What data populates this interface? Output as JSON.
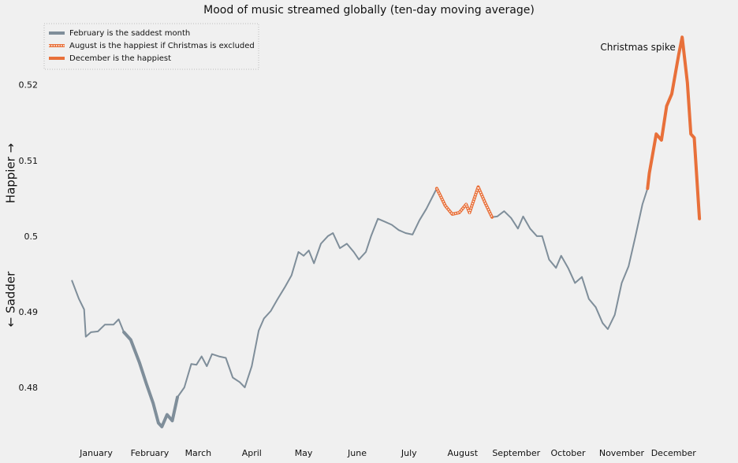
{
  "chart_data": {
    "type": "line",
    "title": "Mood of music streamed globally (ten-day moving average)",
    "y_label_low": "← Sadder",
    "y_label_high": "Happier →",
    "annotation": "Christmas spike",
    "annotation_at": [
      352,
      0.525
    ],
    "xlim": [
      -11,
      379
    ],
    "ylim": [
      0.4725,
      0.5284
    ],
    "xticks": [
      {
        "value": 15,
        "label": "January"
      },
      {
        "value": 46,
        "label": "February"
      },
      {
        "value": 74,
        "label": "March"
      },
      {
        "value": 105,
        "label": "April"
      },
      {
        "value": 135,
        "label": "May"
      },
      {
        "value": 166,
        "label": "June"
      },
      {
        "value": 196,
        "label": "July"
      },
      {
        "value": 227,
        "label": "August"
      },
      {
        "value": 258,
        "label": "September"
      },
      {
        "value": 288,
        "label": "October"
      },
      {
        "value": 319,
        "label": "November"
      },
      {
        "value": 349,
        "label": "December"
      }
    ],
    "yticks": [
      0.48,
      0.49,
      0.5,
      0.51,
      0.52
    ],
    "grid": false,
    "legend": "upper left",
    "series": [
      {
        "color": "#7f8e9a",
        "width": 2,
        "x": [
          1,
          5,
          8,
          9,
          12,
          16,
          20,
          25,
          28,
          31,
          35,
          40,
          44,
          48,
          51,
          53,
          56,
          59,
          62,
          66,
          70,
          73,
          76,
          79,
          82,
          86,
          90,
          94,
          98,
          101,
          105,
          109,
          112,
          116,
          120,
          124,
          128,
          132,
          135,
          138,
          141,
          145,
          149,
          152,
          156,
          160,
          164,
          167,
          171,
          174,
          178,
          182,
          186,
          190,
          194,
          198,
          202,
          206,
          210,
          212,
          214,
          217,
          221,
          225,
          229,
          231,
          236,
          240,
          244,
          247,
          251,
          255,
          259,
          262,
          266,
          270,
          273,
          277,
          281,
          284,
          288,
          292,
          296,
          300,
          304,
          308,
          311,
          315,
          319,
          323,
          327,
          331,
          334,
          335,
          339,
          342,
          345,
          348,
          352,
          354,
          357,
          359,
          361,
          364
        ],
        "values": [
          0.4942,
          0.4918,
          0.4904,
          0.4868,
          0.4874,
          0.4875,
          0.4884,
          0.4884,
          0.4891,
          0.4874,
          0.4864,
          0.4834,
          0.4806,
          0.478,
          0.4754,
          0.4749,
          0.4765,
          0.4757,
          0.4788,
          0.4801,
          0.4832,
          0.4831,
          0.4842,
          0.4829,
          0.4845,
          0.4842,
          0.484,
          0.4814,
          0.4808,
          0.4801,
          0.4829,
          0.4876,
          0.4892,
          0.4902,
          0.4918,
          0.4933,
          0.4949,
          0.498,
          0.4975,
          0.4982,
          0.4965,
          0.4991,
          0.5001,
          0.5005,
          0.4985,
          0.4991,
          0.498,
          0.497,
          0.498,
          0.5001,
          0.5024,
          0.502,
          0.5016,
          0.5009,
          0.5005,
          0.5003,
          0.5022,
          0.5037,
          0.5055,
          0.5064,
          0.5055,
          0.5041,
          0.503,
          0.5032,
          0.5043,
          0.5032,
          0.5066,
          0.5045,
          0.5026,
          0.5027,
          0.5034,
          0.5025,
          0.5011,
          0.5027,
          0.5011,
          0.5001,
          0.5001,
          0.497,
          0.4959,
          0.4975,
          0.4959,
          0.4939,
          0.4947,
          0.4918,
          0.4907,
          0.4886,
          0.4878,
          0.4897,
          0.4939,
          0.4961,
          0.5001,
          0.5043,
          0.5064,
          0.5084,
          0.5136,
          0.5128,
          0.5173,
          0.5189,
          0.5241,
          0.5264,
          0.5204,
          0.5136,
          0.5131,
          0.5024
        ]
      },
      {
        "name": "February is the saddest month",
        "color": "#7f8e9a",
        "width": 4,
        "x": [
          31,
          35,
          40,
          44,
          48,
          51,
          53,
          56,
          59,
          62
        ],
        "values": [
          0.4874,
          0.4864,
          0.4834,
          0.4806,
          0.478,
          0.4754,
          0.4749,
          0.4765,
          0.4757,
          0.4788
        ]
      },
      {
        "name": "August is the happiest if Christmas is excluded",
        "color": "#e8703a",
        "width": 4,
        "style": "dotted",
        "x": [
          212,
          214,
          217,
          221,
          225,
          229,
          231,
          236,
          240,
          244
        ],
        "values": [
          0.5064,
          0.5055,
          0.5041,
          0.503,
          0.5032,
          0.5043,
          0.5032,
          0.5066,
          0.5045,
          0.5026
        ]
      },
      {
        "name": "December is the happiest",
        "color": "#e8703a",
        "width": 4,
        "x": [
          334,
          335,
          339,
          342,
          345,
          348,
          352,
          354,
          357,
          359,
          361,
          364
        ],
        "values": [
          0.5064,
          0.5084,
          0.5136,
          0.5128,
          0.5173,
          0.5189,
          0.5241,
          0.5264,
          0.5204,
          0.5136,
          0.5131,
          0.5024
        ]
      }
    ]
  }
}
